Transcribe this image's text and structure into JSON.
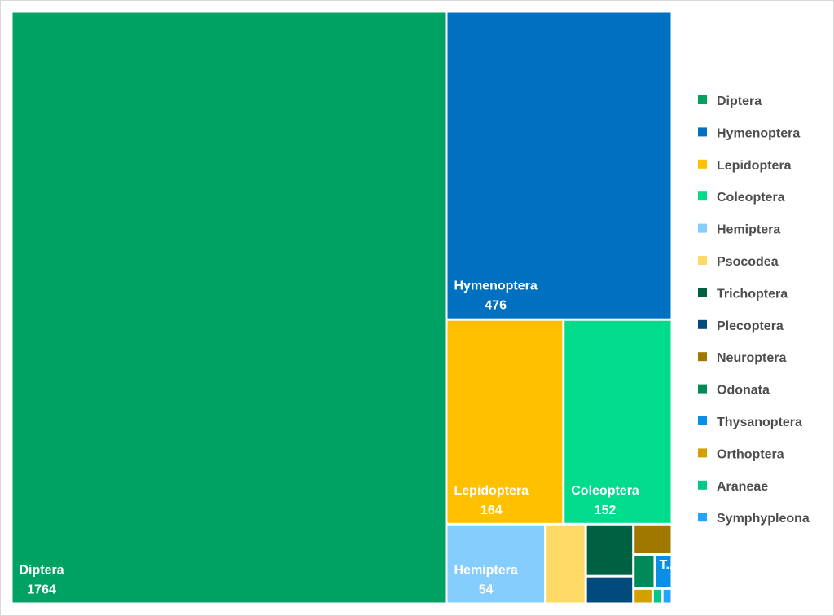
{
  "chart_data": {
    "type": "treemap",
    "legend_position": "right",
    "items": [
      {
        "name": "Diptera",
        "value": 1764,
        "color": "#00A264",
        "label": "Diptera",
        "value_label": "1764"
      },
      {
        "name": "Hymenoptera",
        "value": 476,
        "color": "#0070C0",
        "label": "Hymenoptera",
        "value_label": "476"
      },
      {
        "name": "Lepidoptera",
        "value": 164,
        "color": "#FFC000",
        "label": "Lepidoptera",
        "value_label": "164"
      },
      {
        "name": "Coleoptera",
        "value": 152,
        "color": "#00DC8C",
        "label": "Coleoptera",
        "value_label": "152"
      },
      {
        "name": "Hemiptera",
        "value": 54,
        "color": "#85CDFC",
        "label": "Hemiptera",
        "value_label": "54"
      },
      {
        "name": "Psocodea",
        "value": 22,
        "color": "#FFD966",
        "label": "",
        "value_label": ""
      },
      {
        "name": "Trichoptera",
        "value": 17,
        "color": "#006042",
        "label": "",
        "value_label": ""
      },
      {
        "name": "Plecoptera",
        "value": 9,
        "color": "#004A7C",
        "label": "",
        "value_label": ""
      },
      {
        "name": "Neuroptera",
        "value": 8,
        "color": "#A07800",
        "label": "",
        "value_label": ""
      },
      {
        "name": "Odonata",
        "value": 5,
        "color": "#008A58",
        "label": "",
        "value_label": ""
      },
      {
        "name": "Thysanoptera",
        "value": 4,
        "color": "#0A8FE8",
        "label": "T...",
        "value_label": ""
      },
      {
        "name": "Orthoptera",
        "value": 2,
        "color": "#D4A000",
        "label": "",
        "value_label": ""
      },
      {
        "name": "Araneae",
        "value": 1,
        "color": "#00C888",
        "label": "",
        "value_label": ""
      },
      {
        "name": "Symphypleona",
        "value": 1,
        "color": "#21A6FF",
        "label": "",
        "value_label": ""
      }
    ]
  }
}
